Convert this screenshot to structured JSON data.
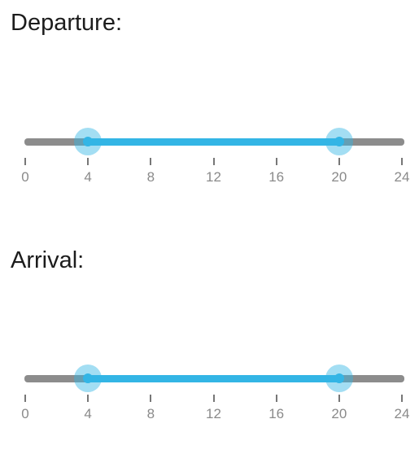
{
  "departure": {
    "label": "Departure:",
    "min": 0,
    "max": 24,
    "low": 4,
    "high": 20,
    "ticks": [
      "0",
      "4",
      "8",
      "12",
      "16",
      "20",
      "24"
    ]
  },
  "arrival": {
    "label": "Arrival:",
    "min": 0,
    "max": 24,
    "low": 4,
    "high": 20,
    "ticks": [
      "0",
      "4",
      "8",
      "12",
      "16",
      "20",
      "24"
    ]
  },
  "colors": {
    "accent": "#33b5e5",
    "track": "#8c8c8c",
    "tick_label": "#8a8a8a",
    "heading": "#1c1c1c"
  }
}
